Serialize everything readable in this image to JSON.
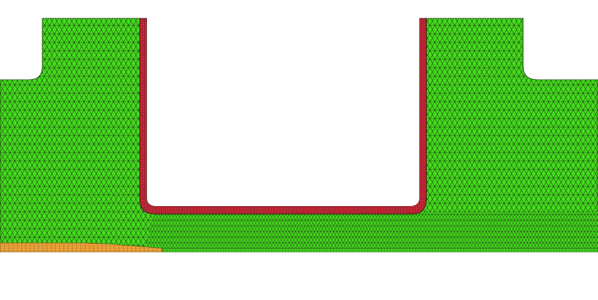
{
  "diagram": {
    "kind": "finite-element mesh cross-section",
    "regions": [
      {
        "name": "bulk-tetrahedral-mesh",
        "fill": "#44dd1d",
        "edge": "#1b2f13"
      },
      {
        "name": "boundary-layer-mesh",
        "fill": "#cc2b3a",
        "edge": "#3a0c10"
      },
      {
        "name": "substrate-layer-mesh",
        "fill": "#f2a63a",
        "edge": "#5a3a10"
      }
    ],
    "colors": {
      "background": "#ffffff",
      "green_fill": "#44dd1d",
      "green_edge": "#1b2f13",
      "red_fill": "#cc2b3a",
      "red_edge": "#3a0c10",
      "orange_fill": "#f2a63a",
      "orange_edge": "#5a3a10"
    }
  }
}
